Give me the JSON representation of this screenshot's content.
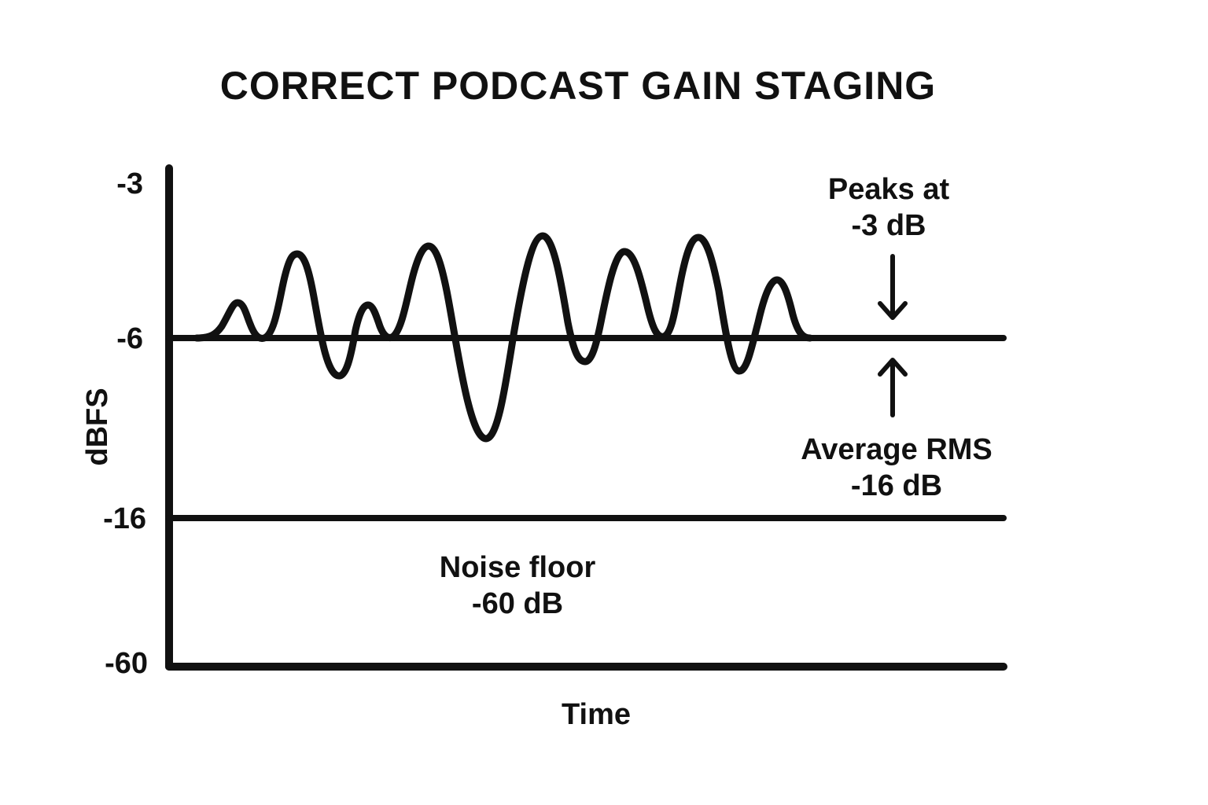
{
  "title": "CORRECT PODCAST GAIN STAGING",
  "y_axis": {
    "label": "dBFS",
    "ticks": [
      "-3",
      "-6",
      "-16",
      "-60"
    ]
  },
  "x_axis": {
    "label": "Time"
  },
  "annotations": {
    "peaks_line1": "Peaks at",
    "peaks_line2": "-3 dB",
    "rms_line1": "Average RMS",
    "rms_line2": "-16 dB",
    "noise_line1": "Noise floor",
    "noise_line2": "-60 dB"
  },
  "colors": {
    "ink": "#111111",
    "background": "#ffffff"
  }
}
